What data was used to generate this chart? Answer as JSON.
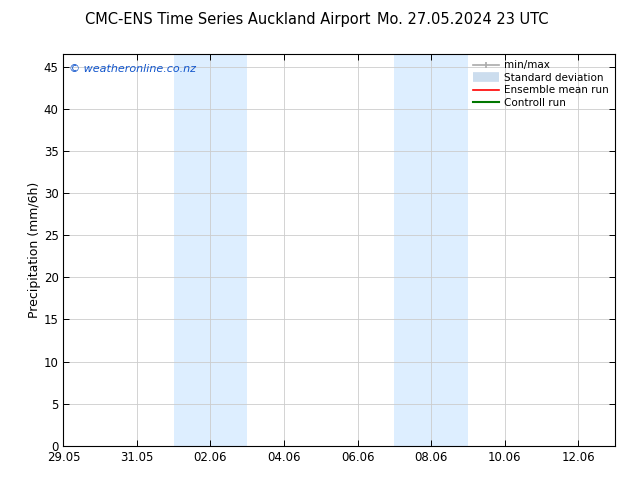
{
  "title_left": "CMC-ENS Time Series Auckland Airport",
  "title_right": "Mo. 27.05.2024 23 UTC",
  "ylabel": "Precipitation (mm/6h)",
  "watermark": "© weatheronline.co.nz",
  "ylim": [
    0,
    46.5
  ],
  "yticks": [
    0,
    5,
    10,
    15,
    20,
    25,
    30,
    35,
    40,
    45
  ],
  "xtick_labels": [
    "29.05",
    "31.05",
    "02.06",
    "04.06",
    "06.06",
    "08.06",
    "10.06",
    "12.06"
  ],
  "xtick_days": [
    0,
    2,
    4,
    6,
    8,
    10,
    12,
    14
  ],
  "xlim": [
    0,
    15
  ],
  "shaded_bands": [
    {
      "start": 3.0,
      "end": 5.0
    },
    {
      "start": 9.0,
      "end": 11.0
    }
  ],
  "shaded_color": "#ddeeff",
  "grid_color": "#cccccc",
  "background_color": "#ffffff",
  "legend_items": [
    {
      "label": "min/max",
      "color": "#aaaaaa",
      "lw": 1.2
    },
    {
      "label": "Standard deviation",
      "color": "#ccddee",
      "lw": 7
    },
    {
      "label": "Ensemble mean run",
      "color": "#ff0000",
      "lw": 1.2
    },
    {
      "label": "Controll run",
      "color": "#007700",
      "lw": 1.5
    }
  ],
  "title_fontsize": 10.5,
  "axis_fontsize": 9,
  "tick_fontsize": 8.5,
  "watermark_fontsize": 8,
  "legend_fontsize": 7.5
}
